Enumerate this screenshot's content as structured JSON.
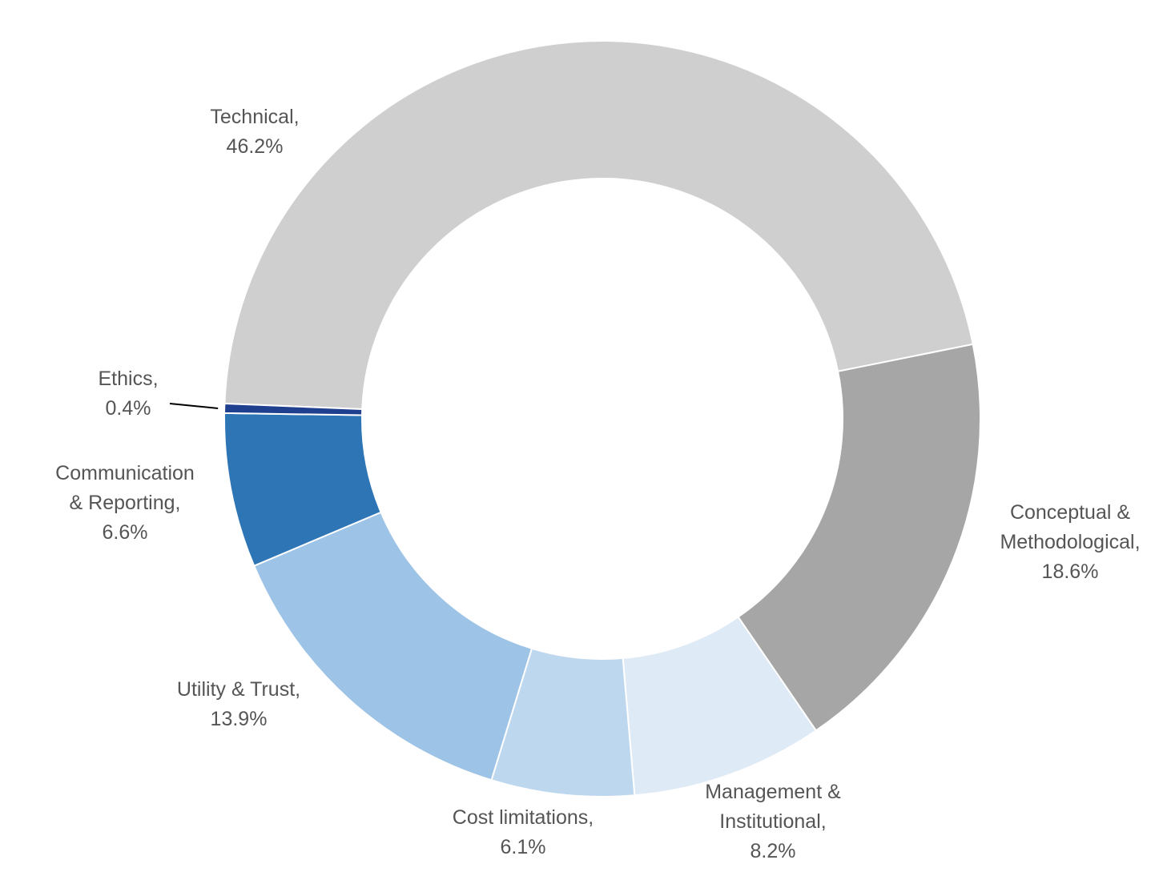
{
  "chart_data": {
    "type": "pie",
    "donut": true,
    "title": "",
    "slices": [
      {
        "name": "Technical",
        "value": 46.2,
        "label_lines": [
          "Technical,",
          "46.2%"
        ],
        "color": "#d0cfcf"
      },
      {
        "name": "Conceptual & Methodological",
        "value": 18.6,
        "label_lines": [
          "Conceptual &",
          "Methodological,",
          "18.6%"
        ],
        "color": "#a6a6a6"
      },
      {
        "name": "Management & Institutional",
        "value": 8.2,
        "label_lines": [
          "Management &",
          "Institutional,",
          "8.2%"
        ],
        "color": "#deeaf6"
      },
      {
        "name": "Cost limitations",
        "value": 6.1,
        "label_lines": [
          "Cost limitations,",
          "6.1%"
        ],
        "color": "#bdd7ee"
      },
      {
        "name": "Utility & Trust",
        "value": 13.9,
        "label_lines": [
          "Utility & Trust,",
          "13.9%"
        ],
        "color": "#9dc3e6"
      },
      {
        "name": "Communication & Reporting",
        "value": 6.6,
        "label_lines": [
          "Communication",
          "& Reporting,",
          "6.6%"
        ],
        "color": "#2e75b6"
      },
      {
        "name": "Ethics",
        "value": 0.4,
        "label_lines": [
          "Ethics,",
          "0.4%"
        ],
        "color": "#1f3f8f"
      }
    ],
    "legend": "none",
    "label_color": "#555555"
  }
}
